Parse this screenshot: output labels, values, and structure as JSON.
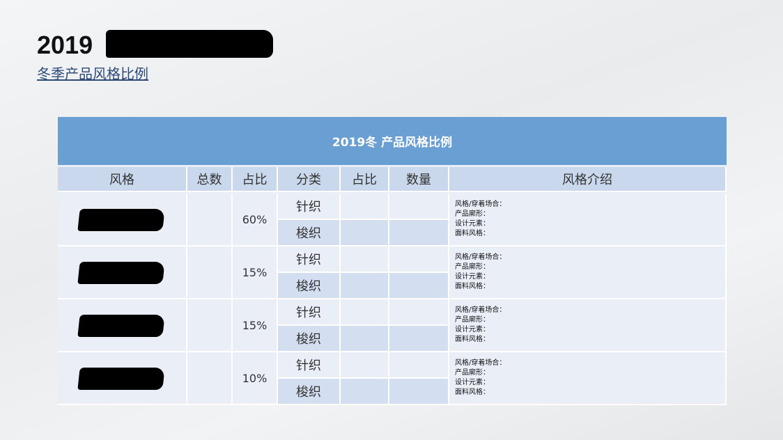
{
  "heading": {
    "year": "2019",
    "subtitle": "冬季产品风格比例"
  },
  "table": {
    "title": "2019冬  产品风格比例",
    "headers": [
      "风格",
      "总数",
      "占比",
      "分类",
      "占比",
      "数量",
      "风格介绍"
    ],
    "groups": [
      {
        "share": "60%",
        "categories": [
          "针织",
          "梭织"
        ]
      },
      {
        "share": "15%",
        "categories": [
          "针织",
          "梭织"
        ]
      },
      {
        "share": "15%",
        "categories": [
          "针织",
          "梭织"
        ]
      },
      {
        "share": "10%",
        "categories": [
          "针织",
          "梭织"
        ]
      }
    ],
    "intro_lines": [
      "风格/穿着场合：",
      "产品廓形：",
      "设计元素：",
      "面料风格："
    ]
  }
}
